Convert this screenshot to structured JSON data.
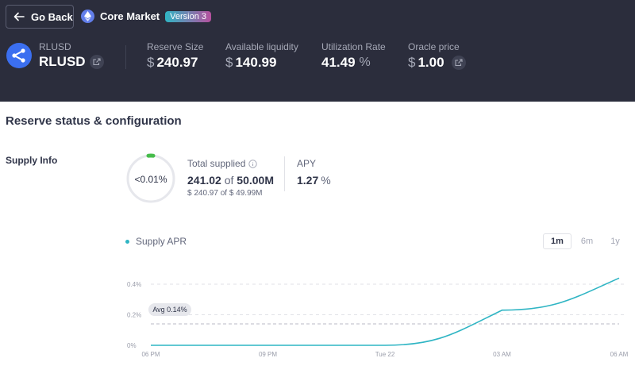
{
  "header": {
    "back_label": "Go Back",
    "market_name": "Core Market",
    "version_badge": "Version 3",
    "asset_symbol_small": "RLUSD",
    "asset_symbol": "RLUSD",
    "icons": {
      "back": "arrow-left-icon",
      "market": "ethereum-icon",
      "asset": "ripple-icon",
      "external": "external-link-icon"
    }
  },
  "stats": [
    {
      "label": "Reserve Size",
      "prefix": "$",
      "value": "240.97",
      "suffix": ""
    },
    {
      "label": "Available liquidity",
      "prefix": "$",
      "value": "140.99",
      "suffix": ""
    },
    {
      "label": "Utilization Rate",
      "prefix": "",
      "value": "41.49",
      "suffix": "%"
    },
    {
      "label": "Oracle price",
      "prefix": "$",
      "value": "1.00",
      "suffix": ""
    }
  ],
  "section": {
    "title": "Reserve status & configuration",
    "supply_label": "Supply Info"
  },
  "supply": {
    "cap_usage": "<0.01%",
    "total_supplied_label": "Total supplied",
    "total_supplied": "241.02",
    "of_word": "of",
    "supply_cap": "50.00M",
    "usd_line": "$ 240.97 of $ 49.99M",
    "apy_label": "APY",
    "apy_value": "1.27",
    "apy_suffix": "%"
  },
  "colors": {
    "header_bg": "#2b2d3c",
    "accent": "#2fb5c4",
    "ring_fill": "#46bc4b"
  },
  "chart_data": {
    "type": "line",
    "series": [
      {
        "name": "Supply APR",
        "x": [
          "06 PM",
          "09 PM",
          "Tue 22",
          "03 AM",
          "06 AM"
        ],
        "values": [
          0.0,
          0.0,
          0.0,
          0.23,
          0.44
        ]
      }
    ],
    "x_ticks": [
      "06 PM",
      "09 PM",
      "Tue 22",
      "03 AM",
      "06 AM"
    ],
    "y_ticks": [
      "0%",
      "0.2%",
      "0.4%"
    ],
    "ylim": [
      0,
      0.4
    ],
    "average": {
      "label": "Avg 0.14%",
      "value": 0.14
    },
    "ranges": [
      "1m",
      "6m",
      "1y"
    ],
    "active_range": "1m",
    "grid": true,
    "legend": "top-left"
  }
}
